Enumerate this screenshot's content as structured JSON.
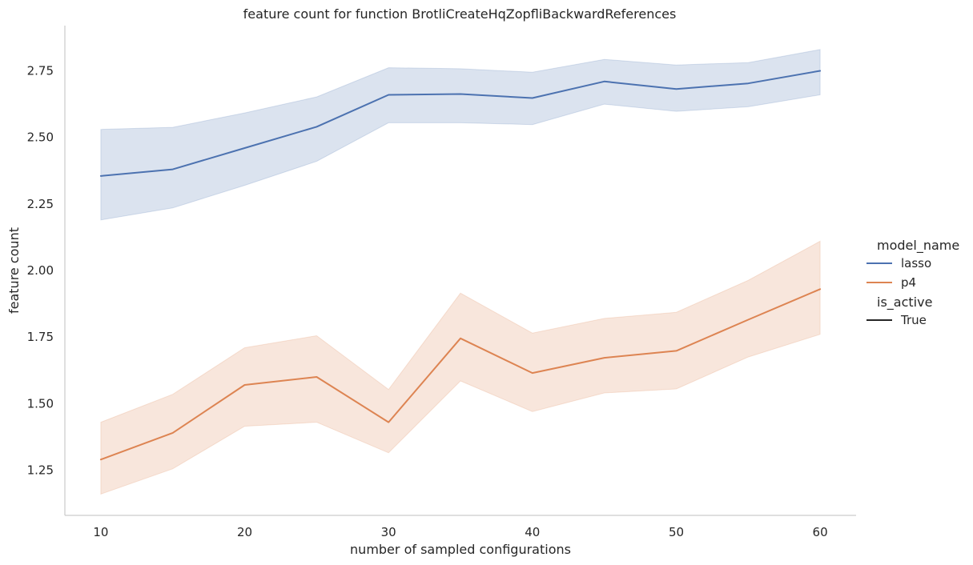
{
  "chart_data": {
    "type": "line",
    "title": "feature count for function BrotliCreateHqZopfliBackwardReferences",
    "xlabel": "number of sampled configurations",
    "ylabel": "feature count",
    "x": [
      10,
      15,
      20,
      25,
      30,
      35,
      40,
      45,
      50,
      55,
      60
    ],
    "xlim": [
      7.5,
      62.5
    ],
    "ylim": [
      1.08,
      2.92
    ],
    "xticks": [
      10,
      20,
      30,
      40,
      50,
      60
    ],
    "yticks": [
      1.25,
      1.5,
      1.75,
      2.0,
      2.25,
      2.5,
      2.75
    ],
    "ytick_labels": [
      "1.25",
      "1.50",
      "1.75",
      "2.00",
      "2.25",
      "2.50",
      "2.75"
    ],
    "grid": false,
    "legend_placement": "right",
    "series": [
      {
        "name": "lasso",
        "color": "#4c72b0",
        "values": [
          2.355,
          2.38,
          2.46,
          2.54,
          2.66,
          2.663,
          2.648,
          2.71,
          2.682,
          2.703,
          2.75
        ],
        "ci_lower": [
          2.19,
          2.235,
          2.32,
          2.41,
          2.555,
          2.555,
          2.548,
          2.625,
          2.598,
          2.615,
          2.66
        ],
        "ci_upper": [
          2.53,
          2.538,
          2.592,
          2.652,
          2.762,
          2.758,
          2.745,
          2.793,
          2.772,
          2.781,
          2.83
        ]
      },
      {
        "name": "p4",
        "color": "#dd8452",
        "values": [
          1.29,
          1.39,
          1.57,
          1.6,
          1.43,
          1.745,
          1.615,
          1.672,
          1.698,
          1.815,
          1.93
        ],
        "ci_lower": [
          1.16,
          1.255,
          1.415,
          1.43,
          1.315,
          1.585,
          1.47,
          1.54,
          1.555,
          1.675,
          1.76
        ],
        "ci_upper": [
          1.43,
          1.535,
          1.71,
          1.755,
          1.553,
          1.915,
          1.765,
          1.82,
          1.843,
          1.963,
          2.11
        ]
      }
    ],
    "legend": {
      "hue_title": "model_name",
      "style_title": "is_active",
      "style_entries": [
        {
          "label": "True",
          "color": "#262626"
        }
      ]
    }
  }
}
